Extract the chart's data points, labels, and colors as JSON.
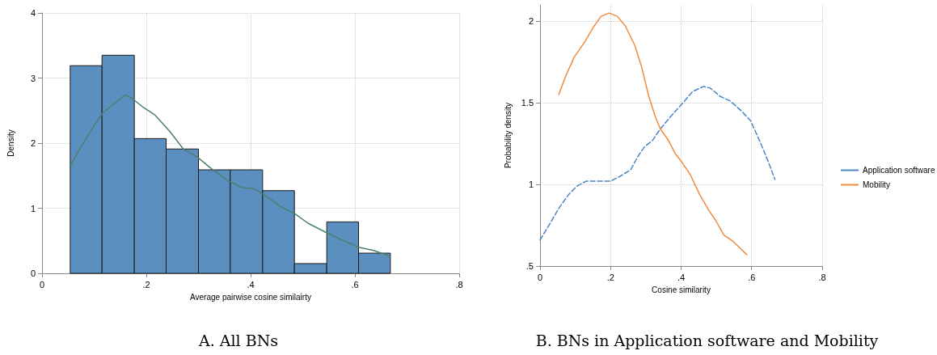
{
  "chart_data": [
    {
      "type": "histogram",
      "title": "A. All BNs",
      "xlabel": "Average pairwise cosine similairty",
      "ylabel": "Density",
      "bins": [
        0.054,
        0.115,
        0.177,
        0.238,
        0.3,
        0.361,
        0.423,
        0.484,
        0.546,
        0.607,
        0.668
      ],
      "values": [
        3.19,
        3.35,
        2.07,
        1.91,
        1.59,
        1.59,
        1.27,
        0.15,
        0.79,
        0.31
      ],
      "color": "#5b8fc0",
      "series": [
        {
          "type": "line",
          "color": "#4e7f6e",
          "x": [
            0.054,
            0.073,
            0.096,
            0.116,
            0.136,
            0.159,
            0.174,
            0.194,
            0.217,
            0.245,
            0.271,
            0.297,
            0.326,
            0.357,
            0.383,
            0.407,
            0.435,
            0.458,
            0.484,
            0.51,
            0.544,
            0.573,
            0.607,
            0.636,
            0.668
          ],
          "values": [
            1.65,
            1.92,
            2.22,
            2.46,
            2.59,
            2.74,
            2.68,
            2.55,
            2.43,
            2.18,
            1.91,
            1.79,
            1.6,
            1.42,
            1.32,
            1.3,
            1.16,
            1.02,
            0.92,
            0.77,
            0.63,
            0.52,
            0.4,
            0.35,
            0.26
          ]
        }
      ],
      "xlim": [
        0,
        0.8
      ],
      "xticks": [
        0,
        {
          "value": 0.2,
          "label": ".2"
        },
        {
          "value": 0.4,
          "label": ".4"
        },
        {
          "value": 0.6,
          "label": ".6"
        },
        {
          "value": 0.8,
          "label": ".8"
        }
      ],
      "ylim": [
        0,
        4
      ],
      "yticks": [
        0,
        1,
        2,
        3,
        4
      ],
      "grid": true
    },
    {
      "type": "line",
      "title": "B. BNs in Application software and Mobility",
      "xlabel": "Cosine similarity",
      "ylabel": "Probability density",
      "legend": "right",
      "series": [
        {
          "name": "Application software",
          "color": "#4a86c5",
          "line_style": "dashed",
          "x": [
            0,
            0.028,
            0.055,
            0.082,
            0.105,
            0.131,
            0.166,
            0.2,
            0.227,
            0.257,
            0.277,
            0.296,
            0.319,
            0.341,
            0.372,
            0.401,
            0.433,
            0.464,
            0.483,
            0.51,
            0.54,
            0.571,
            0.597,
            0.624,
            0.647,
            0.666
          ],
          "values": [
            0.66,
            0.76,
            0.86,
            0.94,
            0.99,
            1.02,
            1.02,
            1.02,
            1.05,
            1.09,
            1.17,
            1.23,
            1.27,
            1.34,
            1.42,
            1.49,
            1.57,
            1.6,
            1.59,
            1.54,
            1.51,
            1.45,
            1.39,
            1.26,
            1.14,
            1.03
          ]
        },
        {
          "name": "Mobility",
          "color": "#f08a3c",
          "line_style": "solid",
          "x": [
            0.053,
            0.074,
            0.097,
            0.129,
            0.15,
            0.173,
            0.196,
            0.219,
            0.242,
            0.269,
            0.288,
            0.307,
            0.326,
            0.341,
            0.364,
            0.383,
            0.401,
            0.426,
            0.452,
            0.479,
            0.498,
            0.521,
            0.548,
            0.567,
            0.586
          ],
          "values": [
            1.55,
            1.67,
            1.78,
            1.88,
            1.96,
            2.03,
            2.05,
            2.03,
            1.97,
            1.85,
            1.72,
            1.55,
            1.42,
            1.34,
            1.27,
            1.19,
            1.14,
            1.06,
            0.94,
            0.84,
            0.78,
            0.69,
            0.65,
            0.61,
            0.57
          ]
        }
      ],
      "xlim": [
        0,
        0.8
      ],
      "xticks": [
        0,
        {
          "value": 0.2,
          "label": ".2"
        },
        {
          "value": 0.4,
          "label": ".4"
        },
        {
          "value": 0.6,
          "label": ".6"
        },
        {
          "value": 0.8,
          "label": ".8"
        }
      ],
      "ylim": [
        0.5,
        2.1
      ],
      "yticks": [
        {
          "value": 0.5,
          "label": ".5"
        },
        1,
        1.5,
        2
      ],
      "grid": true
    }
  ]
}
